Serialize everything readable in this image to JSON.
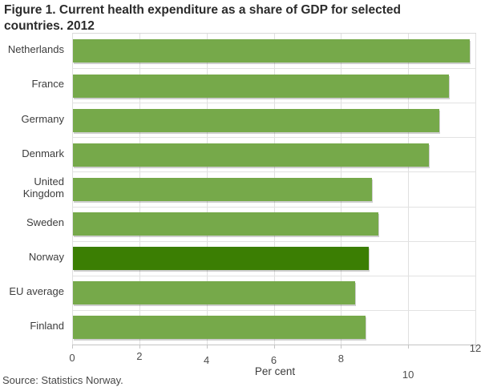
{
  "figure": {
    "title": "Figure 1. Current health expenditure as a share of GDP for selected countries. 2012",
    "source": "Source: Statistics Norway."
  },
  "chart_data": {
    "type": "bar",
    "orientation": "horizontal",
    "title": "Figure 1. Current health expenditure as a share of GDP for selected countries. 2012",
    "categories": [
      "Netherlands",
      "France",
      "Germany",
      "Denmark",
      "United Kingdom",
      "Sweden",
      "Norway",
      "EU average",
      "Finland"
    ],
    "values": [
      11.8,
      11.2,
      10.9,
      10.6,
      8.9,
      9.1,
      8.8,
      8.4,
      8.7
    ],
    "highlight_category": "Norway",
    "xlabel": "Per cent",
    "xlim": [
      0,
      12
    ],
    "xtick_labels": [
      "0",
      "2",
      "4",
      "6",
      "8",
      "10",
      "12"
    ],
    "xtick_values": [
      0,
      2,
      4,
      6,
      8,
      10,
      12
    ],
    "grid": "vertical",
    "legend": "none",
    "colors": {
      "bar": "#76a94a",
      "highlight_bar": "#3b7e03",
      "gridline": "#e0e0e0",
      "axis_line": "#c3c3c3",
      "text": "#3d3d3d"
    }
  }
}
